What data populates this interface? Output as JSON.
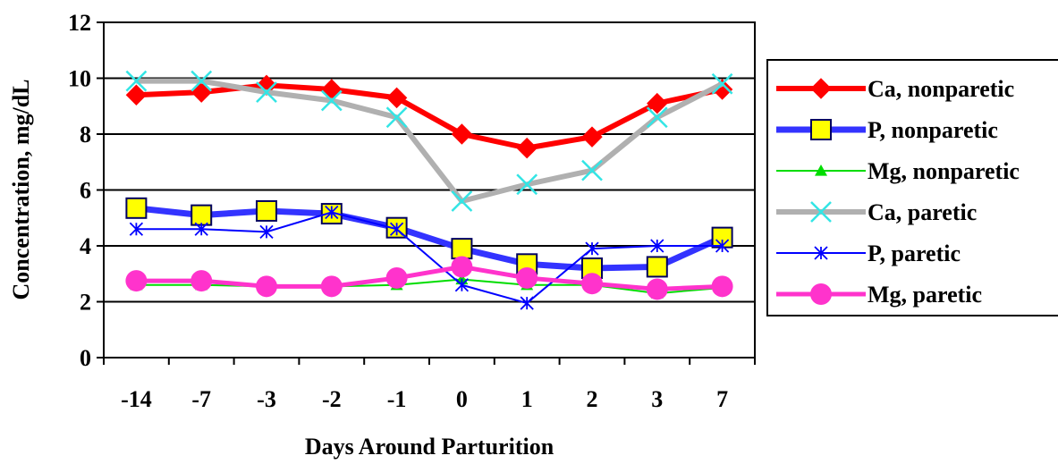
{
  "chart_data": {
    "type": "line",
    "xlabel": "Days Around Parturition",
    "ylabel": "Concentration, mg/dL",
    "categories": [
      "-14",
      "-7",
      "-3",
      "-2",
      "-1",
      "0",
      "1",
      "2",
      "3",
      "7"
    ],
    "ylim": [
      0,
      12
    ],
    "yticks": [
      "0",
      "2",
      "4",
      "6",
      "8",
      "10",
      "12"
    ],
    "grid": "horizontal",
    "legend_position": "right",
    "series": [
      {
        "name": "Ca, nonparetic",
        "color": "#ff0000",
        "marker": "diamond",
        "marker_color": "#ff0000",
        "values": [
          9.4,
          9.5,
          9.75,
          9.6,
          9.3,
          8.0,
          7.5,
          7.9,
          9.1,
          9.6
        ]
      },
      {
        "name": "P, nonparetic",
        "color": "#3333ff",
        "marker": "square",
        "marker_color": "#ffff00",
        "values": [
          5.35,
          5.1,
          5.25,
          5.15,
          4.65,
          3.9,
          3.35,
          3.2,
          3.25,
          4.3
        ]
      },
      {
        "name": "Mg, nonparetic",
        "color": "#00dd00",
        "marker": "triangle",
        "marker_color": "#00dd00",
        "values": [
          2.6,
          2.6,
          2.55,
          2.55,
          2.6,
          2.8,
          2.6,
          2.6,
          2.3,
          2.5
        ]
      },
      {
        "name": "Ca, paretic",
        "color": "#b0b0b0",
        "marker": "x",
        "marker_color": "#33e5e5",
        "values": [
          9.9,
          9.9,
          9.5,
          9.2,
          8.6,
          5.6,
          6.2,
          6.7,
          8.6,
          9.8
        ]
      },
      {
        "name": "P, paretic",
        "color": "#0000ff",
        "marker": "star",
        "marker_color": "#0000ff",
        "values": [
          4.6,
          4.6,
          4.5,
          5.2,
          4.6,
          2.6,
          1.95,
          3.9,
          4.0,
          4.0
        ]
      },
      {
        "name": "Mg, paretic",
        "color": "#ff33cc",
        "marker": "circle",
        "marker_color": "#ff33cc",
        "values": [
          2.75,
          2.75,
          2.55,
          2.55,
          2.85,
          3.25,
          2.85,
          2.65,
          2.45,
          2.55
        ]
      }
    ]
  }
}
